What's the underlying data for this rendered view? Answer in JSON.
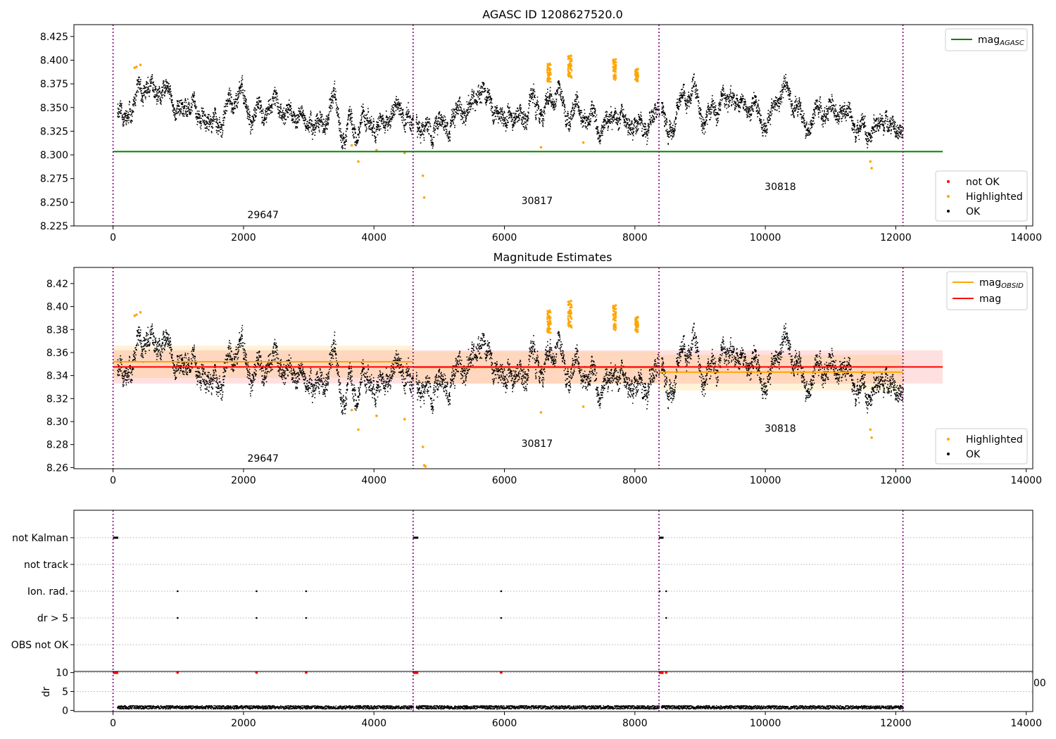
{
  "chart_data": [
    {
      "id": "p1",
      "type": "scatter",
      "title": "AGASC ID 1208627520.0",
      "xlim": [
        -600,
        14100
      ],
      "ylim": [
        8.225,
        8.4375
      ],
      "xticks": [
        0,
        2000,
        4000,
        6000,
        8000,
        10000,
        12000,
        14000
      ],
      "yticks": [
        8.225,
        8.25,
        8.275,
        8.3,
        8.325,
        8.35,
        8.375,
        8.4,
        8.425
      ],
      "ytick_decimals": 3,
      "obsid_boundaries": [
        0,
        4600,
        8370,
        12110
      ],
      "obsid_labels": [
        {
          "text": "29647",
          "x": 2300,
          "y": 8.233
        },
        {
          "text": "30817",
          "x": 6500,
          "y": 8.248
        },
        {
          "text": "30818",
          "x": 10230,
          "y": 8.263
        }
      ],
      "lines": [
        {
          "name": "mag_AGASC",
          "color": "#008000",
          "width": 2,
          "points": [
            [
              0,
              8.3035
            ],
            [
              12720,
              8.3035
            ]
          ]
        }
      ],
      "highlighted": [
        [
          330,
          8.392
        ],
        [
          360,
          8.393
        ],
        [
          420,
          8.395
        ],
        [
          3660,
          8.31
        ],
        [
          3760,
          8.293
        ],
        [
          4040,
          8.305
        ],
        [
          4470,
          8.302
        ],
        [
          4750,
          8.278
        ],
        [
          4770,
          8.255
        ],
        [
          6560,
          8.308
        ],
        [
          7210,
          8.313
        ],
        [
          11630,
          8.286
        ],
        [
          11610,
          8.293
        ]
      ],
      "highlight_clusters": [
        {
          "x0": 6640,
          "x1": 6700,
          "ylow": 8.378,
          "yhigh": 8.398
        },
        {
          "x0": 6960,
          "x1": 7020,
          "ylow": 8.382,
          "yhigh": 8.406
        },
        {
          "x0": 7650,
          "x1": 7700,
          "ylow": 8.38,
          "yhigh": 8.402
        },
        {
          "x0": 7990,
          "x1": 8040,
          "ylow": 8.378,
          "yhigh": 8.392
        }
      ],
      "series_segments": [
        {
          "x0": 60,
          "x1": 4600,
          "mean": 8.352,
          "amp": 0.01,
          "noise": 0.009,
          "slope": -3e-06,
          "seed": 11
        },
        {
          "x0": 4640,
          "x1": 8370,
          "mean": 8.345,
          "amp": 0.008,
          "noise": 0.009,
          "slope": 0.0,
          "seed": 23
        },
        {
          "x0": 8400,
          "x1": 12110,
          "mean": 8.358,
          "amp": 0.012,
          "noise": 0.009,
          "slope": -6.2e-06,
          "seed": 37
        }
      ],
      "legend_top": [
        {
          "label": "mag",
          "sub": "AGASC",
          "color": "#008000",
          "kind": "line"
        }
      ],
      "legend_bottom": [
        {
          "label": "not OK",
          "color": "#ff0000",
          "kind": "dot"
        },
        {
          "label": "Highlighted",
          "color": "#ffa500",
          "kind": "dot"
        },
        {
          "label": "OK",
          "color": "#000000",
          "kind": "dot"
        }
      ]
    },
    {
      "id": "p2",
      "type": "scatter",
      "title": "Magnitude Estimates",
      "xlim": [
        -600,
        14100
      ],
      "ylim": [
        8.259,
        8.434
      ],
      "xticks": [
        0,
        2000,
        4000,
        6000,
        8000,
        10000,
        12000,
        14000
      ],
      "yticks": [
        8.26,
        8.28,
        8.3,
        8.32,
        8.34,
        8.36,
        8.38,
        8.4,
        8.42
      ],
      "ytick_decimals": 2,
      "obsid_boundaries": [
        0,
        4600,
        8370,
        12110
      ],
      "obsid_labels": [
        {
          "text": "29647",
          "x": 2300,
          "y": 8.265
        },
        {
          "text": "30817",
          "x": 6500,
          "y": 8.278
        },
        {
          "text": "30818",
          "x": 10230,
          "y": 8.291
        }
      ],
      "bands": [
        {
          "x0": 0,
          "x1": 12720,
          "y0": 8.333,
          "y1": 8.362,
          "color": "#ff0000",
          "opacity": 0.12
        },
        {
          "x0": 0,
          "x1": 4600,
          "y0": 8.338,
          "y1": 8.366,
          "color": "#ffa500",
          "opacity": 0.15
        },
        {
          "x0": 4600,
          "x1": 8370,
          "y0": 8.333,
          "y1": 8.361,
          "color": "#ffa500",
          "opacity": 0.15
        },
        {
          "x0": 8370,
          "x1": 12110,
          "y0": 8.327,
          "y1": 8.358,
          "color": "#ffa500",
          "opacity": 0.15
        }
      ],
      "lines": [
        {
          "name": "mag_OBSID",
          "color": "#ffa500",
          "width": 2,
          "points": [
            [
              0,
              8.352
            ],
            [
              4600,
              8.352
            ]
          ]
        },
        {
          "name": "mag_OBSID",
          "color": "#ffa500",
          "width": 2,
          "points": [
            [
              4600,
              8.347
            ],
            [
              8370,
              8.347
            ]
          ]
        },
        {
          "name": "mag_OBSID",
          "color": "#ffa500",
          "width": 2,
          "points": [
            [
              8370,
              8.343
            ],
            [
              12110,
              8.343
            ]
          ]
        },
        {
          "name": "mag",
          "color": "#ff0000",
          "width": 2,
          "points": [
            [
              0,
              8.3475
            ],
            [
              12720,
              8.3475
            ]
          ]
        }
      ],
      "highlighted": [
        [
          330,
          8.392
        ],
        [
          360,
          8.393
        ],
        [
          420,
          8.395
        ],
        [
          3660,
          8.31
        ],
        [
          3760,
          8.293
        ],
        [
          4040,
          8.305
        ],
        [
          4470,
          8.302
        ],
        [
          4750,
          8.278
        ],
        [
          4770,
          8.262
        ],
        [
          4790,
          8.261
        ],
        [
          6560,
          8.308
        ],
        [
          7210,
          8.313
        ],
        [
          11630,
          8.286
        ],
        [
          11610,
          8.293
        ]
      ],
      "highlight_clusters": [
        {
          "x0": 6640,
          "x1": 6700,
          "ylow": 8.378,
          "yhigh": 8.398
        },
        {
          "x0": 6960,
          "x1": 7020,
          "ylow": 8.382,
          "yhigh": 8.406
        },
        {
          "x0": 7650,
          "x1": 7700,
          "ylow": 8.38,
          "yhigh": 8.402
        },
        {
          "x0": 7990,
          "x1": 8040,
          "ylow": 8.378,
          "yhigh": 8.392
        }
      ],
      "series_segments": [
        {
          "x0": 60,
          "x1": 4600,
          "mean": 8.352,
          "amp": 0.01,
          "noise": 0.009,
          "slope": -3e-06,
          "seed": 11
        },
        {
          "x0": 4640,
          "x1": 8370,
          "mean": 8.345,
          "amp": 0.008,
          "noise": 0.009,
          "slope": 0.0,
          "seed": 23
        },
        {
          "x0": 8400,
          "x1": 12110,
          "mean": 8.358,
          "amp": 0.012,
          "noise": 0.009,
          "slope": -6.2e-06,
          "seed": 37
        }
      ],
      "legend_top": [
        {
          "label": "mag",
          "sub": "OBSID",
          "color": "#ffa500",
          "kind": "line"
        },
        {
          "label": "mag",
          "sub": "",
          "color": "#ff0000",
          "kind": "line"
        }
      ],
      "legend_bottom": [
        {
          "label": "Highlighted",
          "color": "#ffa500",
          "kind": "dot"
        },
        {
          "label": "OK",
          "color": "#000000",
          "kind": "dot"
        }
      ]
    },
    {
      "id": "p3",
      "type": "scatter",
      "title": "",
      "xlim": [
        -600,
        14100
      ],
      "categories": [
        "not Kalman",
        "not track",
        "Ion. rad.",
        "dr > 5",
        "OBS not OK"
      ],
      "flags": {
        "not Kalman": [
          [
            0,
            80
          ],
          [
            4600,
            4680
          ],
          [
            8370,
            8440
          ]
        ],
        "not track": [],
        "Ion. rad.": [
          990,
          2200,
          2960,
          5950,
          8380,
          8480
        ],
        "dr > 5": [
          990,
          2200,
          2960,
          5950,
          8480
        ],
        "OBS not OK": []
      },
      "partial_tick": "00"
    },
    {
      "id": "p4",
      "type": "scatter",
      "title": "",
      "ylabel": "dr",
      "xlim": [
        -600,
        14100
      ],
      "ylim": [
        -0.3,
        10.3
      ],
      "xticks": [
        0,
        2000,
        4000,
        6000,
        8000,
        10000,
        12000,
        14000
      ],
      "yticks": [
        0,
        5,
        10
      ],
      "red_at_10": [
        [
          0,
          80
        ],
        [
          4600,
          4680
        ],
        [
          8370,
          8440
        ],
        990,
        2200,
        2960,
        5950,
        8480
      ],
      "dr_segments": [
        [
          60,
          4600
        ],
        [
          4640,
          8370
        ],
        [
          8400,
          12110
        ]
      ],
      "dr_mean": 0.95,
      "dr_spread": 0.45
    }
  ],
  "colors": {
    "ok": "#000000",
    "highlighted": "#ffa500",
    "not_ok": "#ff0000",
    "boundary": "#800080",
    "grid": "#b0b0b0"
  }
}
